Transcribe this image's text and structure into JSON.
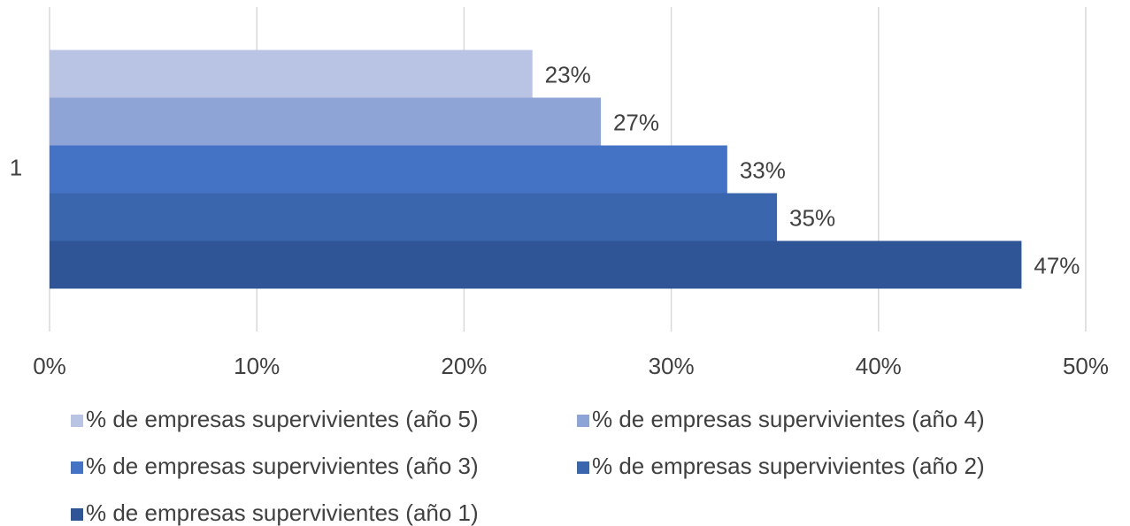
{
  "chart_data": {
    "type": "hbar",
    "categories": [
      "1"
    ],
    "series": [
      {
        "name": "% de empresas supervivientes (año 5)",
        "color": "#b9c4e4",
        "values": [
          23.3
        ],
        "value_labels": [
          "23%"
        ]
      },
      {
        "name": "% de empresas supervivientes (año 4)",
        "color": "#8fa4d6",
        "values": [
          26.6
        ],
        "value_labels": [
          "27%"
        ]
      },
      {
        "name": "% de empresas supervivientes (año 3)",
        "color": "#4472c4",
        "values": [
          32.7
        ],
        "value_labels": [
          "33%"
        ]
      },
      {
        "name": "% de empresas supervivientes (año 2)",
        "color": "#3a66ae",
        "values": [
          35.1
        ],
        "value_labels": [
          "35%"
        ]
      },
      {
        "name": "% de empresas supervivientes (año 1)",
        "color": "#2f5597",
        "values": [
          46.9
        ],
        "value_labels": [
          "47%"
        ]
      }
    ],
    "xlim": [
      0,
      50
    ],
    "xticks": [
      {
        "value": 0,
        "label": "0%"
      },
      {
        "value": 10,
        "label": "10%"
      },
      {
        "value": 20,
        "label": "20%"
      },
      {
        "value": 30,
        "label": "30%"
      },
      {
        "value": 40,
        "label": "40%"
      },
      {
        "value": 50,
        "label": "50%"
      }
    ],
    "grid": true
  }
}
